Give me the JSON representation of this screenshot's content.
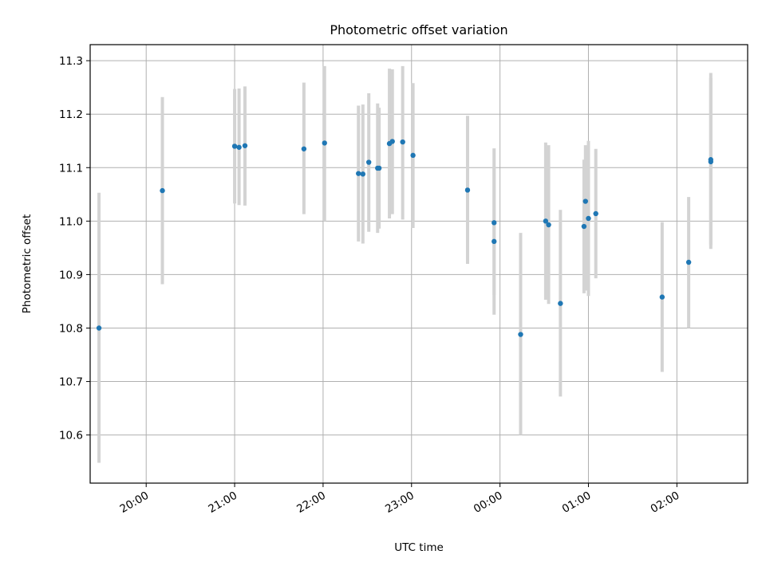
{
  "chart_data": {
    "type": "scatter",
    "title": "Photometric offset variation",
    "xlabel": "UTC time",
    "ylabel": "Photometric offset",
    "x_axis_kind": "utc-time-of-night",
    "xlim": [
      "19:22",
      "02:48"
    ],
    "ylim": [
      10.51,
      11.33
    ],
    "x_ticks": [
      "20:00",
      "21:00",
      "22:00",
      "23:00",
      "00:00",
      "01:00",
      "02:00"
    ],
    "y_ticks": [
      10.6,
      10.7,
      10.8,
      10.9,
      11.0,
      11.1,
      11.2,
      11.3
    ],
    "y_tick_labels": [
      "10.6",
      "10.7",
      "10.8",
      "10.9",
      "11.0",
      "11.1",
      "11.2",
      "11.3"
    ],
    "grid": true,
    "point_color": "#1f77b4",
    "errorbar_color": "#d3d3d3",
    "points": [
      {
        "time": "19:28",
        "y": 10.8,
        "err_low": 10.548,
        "err_high": 11.053
      },
      {
        "time": "20:11",
        "y": 11.057,
        "err_low": 10.882,
        "err_high": 11.232
      },
      {
        "time": "21:00",
        "y": 11.14,
        "err_low": 11.033,
        "err_high": 11.247
      },
      {
        "time": "21:03",
        "y": 11.138,
        "err_low": 11.03,
        "err_high": 11.248
      },
      {
        "time": "21:07",
        "y": 11.141,
        "err_low": 11.029,
        "err_high": 11.252
      },
      {
        "time": "21:47",
        "y": 11.135,
        "err_low": 11.013,
        "err_high": 11.259
      },
      {
        "time": "22:01",
        "y": 11.146,
        "err_low": 11.0,
        "err_high": 11.29
      },
      {
        "time": "22:24",
        "y": 11.089,
        "err_low": 10.962,
        "err_high": 11.216
      },
      {
        "time": "22:27",
        "y": 11.088,
        "err_low": 10.958,
        "err_high": 11.218
      },
      {
        "time": "22:31",
        "y": 11.11,
        "err_low": 10.98,
        "err_high": 11.239
      },
      {
        "time": "22:37",
        "y": 11.099,
        "err_low": 10.978,
        "err_high": 11.22
      },
      {
        "time": "22:38",
        "y": 11.099,
        "err_low": 10.986,
        "err_high": 11.212
      },
      {
        "time": "22:45",
        "y": 11.145,
        "err_low": 11.005,
        "err_high": 11.285
      },
      {
        "time": "22:47",
        "y": 11.149,
        "err_low": 11.013,
        "err_high": 11.284
      },
      {
        "time": "22:54",
        "y": 11.148,
        "err_low": 11.003,
        "err_high": 11.29
      },
      {
        "time": "23:01",
        "y": 11.123,
        "err_low": 10.987,
        "err_high": 11.258
      },
      {
        "time": "23:38",
        "y": 11.058,
        "err_low": 10.92,
        "err_high": 11.197
      },
      {
        "time": "23:56",
        "y": 10.997,
        "err_low": 10.862,
        "err_high": 11.136
      },
      {
        "time": "23:56",
        "y": 10.962,
        "err_low": 10.825,
        "err_high": 11.1
      },
      {
        "time": "00:14",
        "y": 10.788,
        "err_low": 10.6,
        "err_high": 10.978
      },
      {
        "time": "00:31",
        "y": 11.0,
        "err_low": 10.853,
        "err_high": 11.147
      },
      {
        "time": "00:33",
        "y": 10.993,
        "err_low": 10.845,
        "err_high": 11.142
      },
      {
        "time": "00:41",
        "y": 10.846,
        "err_low": 10.672,
        "err_high": 11.021
      },
      {
        "time": "00:57",
        "y": 10.99,
        "err_low": 10.865,
        "err_high": 11.115
      },
      {
        "time": "00:58",
        "y": 11.037,
        "err_low": 10.87,
        "err_high": 11.142
      },
      {
        "time": "01:00",
        "y": 11.005,
        "err_low": 10.86,
        "err_high": 11.15
      },
      {
        "time": "01:05",
        "y": 11.014,
        "err_low": 10.893,
        "err_high": 11.135
      },
      {
        "time": "01:50",
        "y": 10.858,
        "err_low": 10.718,
        "err_high": 10.998
      },
      {
        "time": "02:08",
        "y": 10.923,
        "err_low": 10.8,
        "err_high": 11.045
      },
      {
        "time": "02:23",
        "y": 11.115,
        "err_low": 10.948,
        "err_high": 11.277
      },
      {
        "time": "02:23",
        "y": 11.111,
        "err_low": 10.955,
        "err_high": 11.268
      }
    ]
  }
}
